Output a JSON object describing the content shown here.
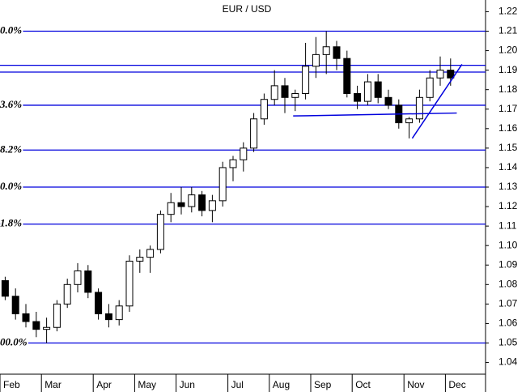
{
  "chart_data": {
    "type": "candlestick",
    "title": "EUR / USD",
    "categories": [
      "Feb",
      null,
      null,
      null,
      "Mar",
      null,
      null,
      null,
      null,
      "Apr",
      null,
      null,
      null,
      "May",
      null,
      null,
      null,
      "Jun",
      null,
      null,
      null,
      null,
      "Jul",
      null,
      null,
      null,
      "Aug",
      null,
      null,
      null,
      "Sep",
      null,
      null,
      null,
      "Oct",
      null,
      null,
      null,
      null,
      "Nov",
      null,
      null,
      null,
      "Dec"
    ],
    "open": [
      1.082,
      1.074,
      1.065,
      1.061,
      1.057,
      1.058,
      1.07,
      1.08,
      1.087,
      1.076,
      1.065,
      1.062,
      1.069,
      1.092,
      1.094,
      1.098,
      1.116,
      1.122,
      1.12,
      1.126,
      1.118,
      1.123,
      1.14,
      1.144,
      1.15,
      1.165,
      1.175,
      1.182,
      1.176,
      1.178,
      1.192,
      1.198,
      1.202,
      1.196,
      1.178,
      1.174,
      1.184,
      1.176,
      1.172,
      1.163,
      1.165,
      1.176,
      1.186,
      1.19
    ],
    "high": [
      1.084,
      1.078,
      1.07,
      1.066,
      1.063,
      1.072,
      1.083,
      1.091,
      1.09,
      1.078,
      1.07,
      1.072,
      1.095,
      1.098,
      1.1,
      1.118,
      1.127,
      1.13,
      1.13,
      1.128,
      1.126,
      1.143,
      1.146,
      1.153,
      1.168,
      1.178,
      1.19,
      1.186,
      1.18,
      1.204,
      1.207,
      1.21,
      1.205,
      1.2,
      1.182,
      1.188,
      1.188,
      1.18,
      1.175,
      1.166,
      1.18,
      1.19,
      1.197,
      1.196
    ],
    "low": [
      1.072,
      1.062,
      1.058,
      1.053,
      1.05,
      1.056,
      1.068,
      1.076,
      1.073,
      1.062,
      1.058,
      1.059,
      1.066,
      1.086,
      1.086,
      1.096,
      1.112,
      1.116,
      1.117,
      1.115,
      1.112,
      1.12,
      1.133,
      1.138,
      1.148,
      1.162,
      1.172,
      1.168,
      1.169,
      1.175,
      1.186,
      1.188,
      1.19,
      1.176,
      1.17,
      1.172,
      1.173,
      1.17,
      1.16,
      1.155,
      1.163,
      1.174,
      1.182,
      1.182
    ],
    "close": [
      1.074,
      1.065,
      1.061,
      1.057,
      1.058,
      1.07,
      1.08,
      1.087,
      1.076,
      1.065,
      1.062,
      1.069,
      1.092,
      1.094,
      1.098,
      1.116,
      1.122,
      1.12,
      1.126,
      1.118,
      1.123,
      1.14,
      1.144,
      1.15,
      1.165,
      1.175,
      1.182,
      1.176,
      1.178,
      1.192,
      1.198,
      1.202,
      1.196,
      1.178,
      1.174,
      1.184,
      1.176,
      1.172,
      1.163,
      1.165,
      1.176,
      1.186,
      1.19,
      1.186
    ],
    "levels": [
      {
        "value": 1.21,
        "label": "0.0%"
      },
      {
        "value": 1.1925
      },
      {
        "value": 1.189
      },
      {
        "value": 1.172,
        "label": "3.6%"
      },
      {
        "value": 1.149,
        "label": "8.2%"
      },
      {
        "value": 1.13,
        "label": "0.0%"
      },
      {
        "value": 1.111,
        "label": "1.8%"
      },
      {
        "value": 1.05,
        "label": "00.0%"
      }
    ],
    "trendlines": [
      {
        "start": [
          28.3,
          1.1665
        ],
        "end": [
          44.1,
          1.168
        ]
      },
      {
        "start": [
          39.8,
          1.155
        ],
        "end": [
          44.6,
          1.193
        ]
      }
    ],
    "ylim": [
      1.034,
      1.226
    ],
    "yticks": [
      1.04,
      1.05,
      1.06,
      1.07,
      1.08,
      1.09,
      {
        "value": 1.1,
        "label": "1.10"
      },
      1.11,
      1.12,
      1.13,
      1.14,
      1.15,
      1.16,
      1.17,
      1.18,
      1.19,
      {
        "value": 1.2,
        "label": "1.20"
      },
      1.21,
      1.22
    ],
    "level_color": "#0000dd",
    "up_color": "#ffffff",
    "down_color": "#000000"
  }
}
